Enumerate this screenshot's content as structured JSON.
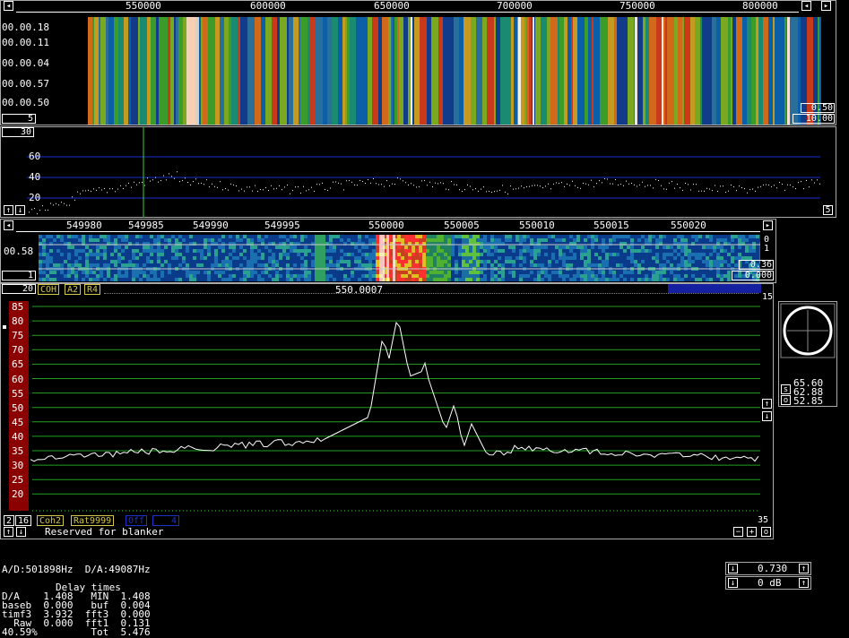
{
  "waterfall_top": {
    "freq_ticks": [
      "550000",
      "600000",
      "650000",
      "700000",
      "750000",
      "800000"
    ],
    "time_labels": [
      "00.00.18",
      "00.00.11",
      "00.00.04",
      "00.00.57",
      "00.00.50"
    ],
    "left_box": "5",
    "right_value_1": "0.50",
    "right_value_2": "10.00"
  },
  "spectrum_top": {
    "left_box": "30",
    "y_labels": [
      "60",
      "40",
      "20"
    ],
    "right_box": "5"
  },
  "waterfall_mid": {
    "freq_ticks": [
      "549980",
      "549985",
      "549990",
      "549995",
      "550000",
      "550005",
      "550010",
      "550015",
      "550020"
    ],
    "time_label": "00.58",
    "left_box": "1",
    "right_labels": [
      "0",
      "1"
    ],
    "right_value_1": "0.36",
    "right_value_2": "0.000"
  },
  "spectrum_main": {
    "bar_left": "20",
    "tags": [
      "COH",
      "A2",
      "R4"
    ],
    "center_freq": "550.0007",
    "right_top": "15",
    "right_bottom": "35",
    "y_labels": [
      "85",
      "80",
      "75",
      "70",
      "65",
      "60",
      "55",
      "50",
      "45",
      "40",
      "35",
      "30",
      "25",
      "20"
    ],
    "bottom_tags": [
      "2",
      "16",
      "Coh2",
      "Rat9999",
      "Off",
      "4"
    ],
    "blanker_text": "Reserved for blanker"
  },
  "meter": {
    "values": [
      "65.60",
      "62.88",
      "52.85"
    ],
    "letters": [
      "s",
      "o"
    ]
  },
  "status": {
    "ad_da": "A/D:501898Hz  D/A:49087Hz",
    "delay_title": "Delay times",
    "rows": [
      "D/A    1.408   MIN  1.408",
      "baseb  0.000   buf  0.004",
      "timf3  3.932  fft3  0.000",
      "  Raw  0.000  fft1  0.131",
      "40.59%         Tot  5.476"
    ]
  },
  "controls": {
    "value_1": "0.730",
    "value_2": "0 dB"
  },
  "colors": {
    "panel_border": "#ffffff",
    "grid_blue": "#1a2fd0",
    "grid_green": "#22a022",
    "scale_red": "#8b0000",
    "tag_yellow": "#d4c84a",
    "tag_blue": "#2030c0"
  }
}
